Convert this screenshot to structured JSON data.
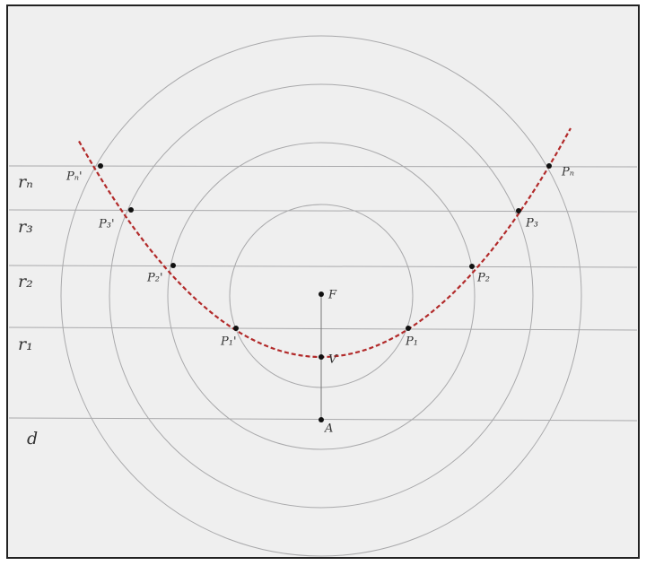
{
  "lines": {
    "rn": "rₙ",
    "r3": "r₃",
    "r2": "r₂",
    "r1": "r₁",
    "d": "d"
  },
  "points": {
    "pn_left": "Pₙ'",
    "p3_left": "P₃'",
    "p2_left": "P₂'",
    "p1_left": "P₁'",
    "pn_right": "Pₙ",
    "p3_right": "P₃",
    "p2_right": "P₂",
    "p1_right": "P₁",
    "focus": "F",
    "vertex": "V",
    "a": "A"
  }
}
